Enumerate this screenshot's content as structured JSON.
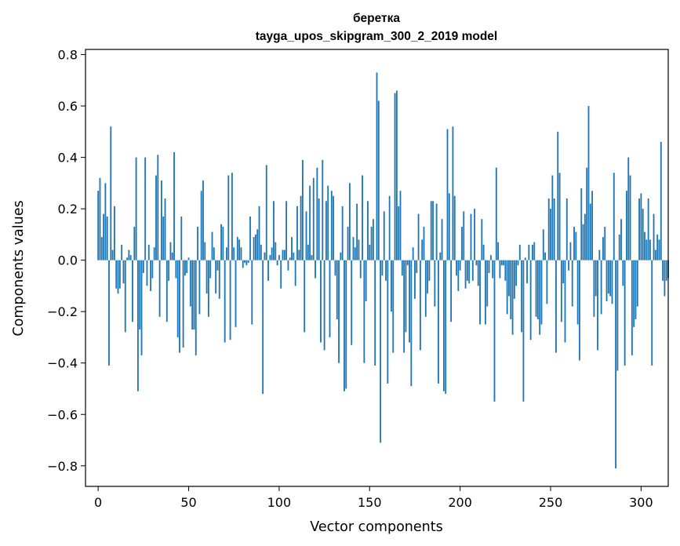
{
  "chart_data": {
    "type": "bar",
    "title": "беретка",
    "subtitle": "tayga_upos_skipgram_300_2_2019 model",
    "xlabel": "Vector components",
    "ylabel": "Components values",
    "xlim": [
      -7,
      315
    ],
    "ylim": [
      -0.88,
      0.82
    ],
    "xticks": [
      0,
      50,
      100,
      150,
      200,
      250,
      300
    ],
    "yticks": [
      -0.8,
      -0.6,
      -0.4,
      -0.2,
      0.0,
      0.2,
      0.4,
      0.6,
      0.8
    ],
    "xtick_labels": [
      "0",
      "50",
      "100",
      "150",
      "200",
      "250",
      "300"
    ],
    "ytick_labels": [
      "−0.8",
      "−0.6",
      "−0.4",
      "−0.2",
      "0.0",
      "0.2",
      "0.4",
      "0.6",
      "0.8"
    ],
    "grid": false,
    "bar_color": "#1f77b4",
    "values": [
      0.27,
      0.32,
      0.09,
      0.18,
      0.3,
      0.17,
      -0.41,
      0.52,
      0.04,
      0.21,
      -0.11,
      -0.13,
      -0.11,
      0.06,
      -0.09,
      -0.28,
      0.01,
      0.04,
      0.02,
      -0.24,
      0.13,
      0.4,
      -0.51,
      -0.27,
      -0.37,
      -0.05,
      0.4,
      -0.1,
      0.06,
      -0.12,
      -0.07,
      0.05,
      0.33,
      0.41,
      -0.22,
      0.31,
      0.17,
      0.24,
      -0.24,
      -0.08,
      0.07,
      0.03,
      0.42,
      -0.07,
      -0.3,
      -0.36,
      0.17,
      -0.34,
      -0.06,
      -0.05,
      0.01,
      -0.18,
      -0.27,
      -0.27,
      -0.37,
      0.13,
      -0.21,
      0.27,
      0.31,
      0.07,
      -0.13,
      -0.22,
      -0.07,
      0.11,
      0.05,
      -0.13,
      -0.04,
      -0.15,
      0.14,
      0.13,
      -0.32,
      0.05,
      0.33,
      -0.31,
      0.34,
      0.05,
      -0.26,
      0.09,
      0.08,
      0.05,
      -0.03,
      -0.01,
      -0.02,
      -0.01,
      0.17,
      -0.25,
      0.09,
      0.1,
      0.12,
      0.21,
      0.06,
      -0.52,
      0.03,
      0.37,
      -0.08,
      0.02,
      0.05,
      0.23,
      0.07,
      -0.02,
      0.02,
      -0.11,
      0.04,
      0.04,
      0.23,
      -0.04,
      0.01,
      0.09,
      0.03,
      -0.1,
      0.21,
      0.04,
      0.25,
      0.39,
      -0.28,
      0.19,
      0.06,
      0.29,
      0.02,
      0.32,
      -0.07,
      0.36,
      0.24,
      -0.32,
      0.39,
      -0.35,
      0.23,
      0.29,
      -0.3,
      0.27,
      0.25,
      -0.06,
      -0.23,
      -0.4,
      0.03,
      0.21,
      -0.51,
      -0.5,
      0.13,
      0.3,
      -0.33,
      0.09,
      0.05,
      0.22,
      0.08,
      -0.07,
      0.33,
      -0.4,
      -0.16,
      0.23,
      0.06,
      0.13,
      0.16,
      -0.41,
      0.73,
      0.62,
      -0.71,
      -0.06,
      0.19,
      -0.08,
      -0.48,
      0.25,
      -0.2,
      -0.36,
      0.65,
      0.66,
      0.21,
      0.27,
      -0.06,
      -0.36,
      -0.28,
      -0.02,
      -0.32,
      -0.49,
      0.05,
      -0.15,
      -0.05,
      0.18,
      -0.35,
      0.08,
      0.13,
      -0.22,
      -0.13,
      -0.08,
      0.23,
      0.23,
      -0.18,
      0.22,
      -0.48,
      0.03,
      0.16,
      -0.51,
      -0.52,
      0.51,
      0.26,
      -0.24,
      0.52,
      0.25,
      -0.06,
      -0.12,
      -0.04,
      0.13,
      0.19,
      -0.11,
      -0.08,
      -0.09,
      0.18,
      -0.08,
      0.2,
      -0.02,
      -0.1,
      -0.25,
      0.16,
      0.06,
      -0.25,
      -0.18,
      -0.05,
      0.02,
      -0.07,
      -0.55,
      0.36,
      0.07,
      -0.07,
      -0.02,
      -0.02,
      -0.08,
      -0.21,
      -0.14,
      -0.23,
      -0.29,
      -0.15,
      -0.1,
      -0.02,
      0.06,
      -0.28,
      -0.55,
      0.01,
      -0.09,
      0.06,
      -0.31,
      0.06,
      0.07,
      -0.22,
      -0.23,
      -0.29,
      -0.25,
      0.12,
      0.03,
      -0.17,
      0.24,
      0.2,
      0.33,
      0.24,
      -0.36,
      0.5,
      0.34,
      -0.24,
      -0.09,
      -0.32,
      0.24,
      -0.04,
      0.07,
      -0.18,
      0.13,
      0.11,
      -0.25,
      -0.39,
      0.28,
      0.14,
      0.18,
      0.36,
      0.6,
      0.22,
      0.27,
      -0.22,
      -0.14,
      -0.35,
      0.04,
      -0.21,
      0.09,
      0.13,
      -0.16,
      -0.13,
      -0.14,
      -0.17,
      0.34,
      -0.81,
      -0.43,
      0.1,
      0.16,
      -0.1,
      -0.41,
      0.27,
      0.4,
      0.33,
      -0.37,
      -0.26,
      -0.23,
      -0.18,
      0.24,
      0.26,
      0.2,
      0.11,
      0.08,
      0.24,
      0.08,
      -0.41,
      0.18,
      0.04,
      0.1,
      0.08,
      0.46,
      -0.08,
      -0.14,
      -0.08,
      -0.07
    ]
  }
}
